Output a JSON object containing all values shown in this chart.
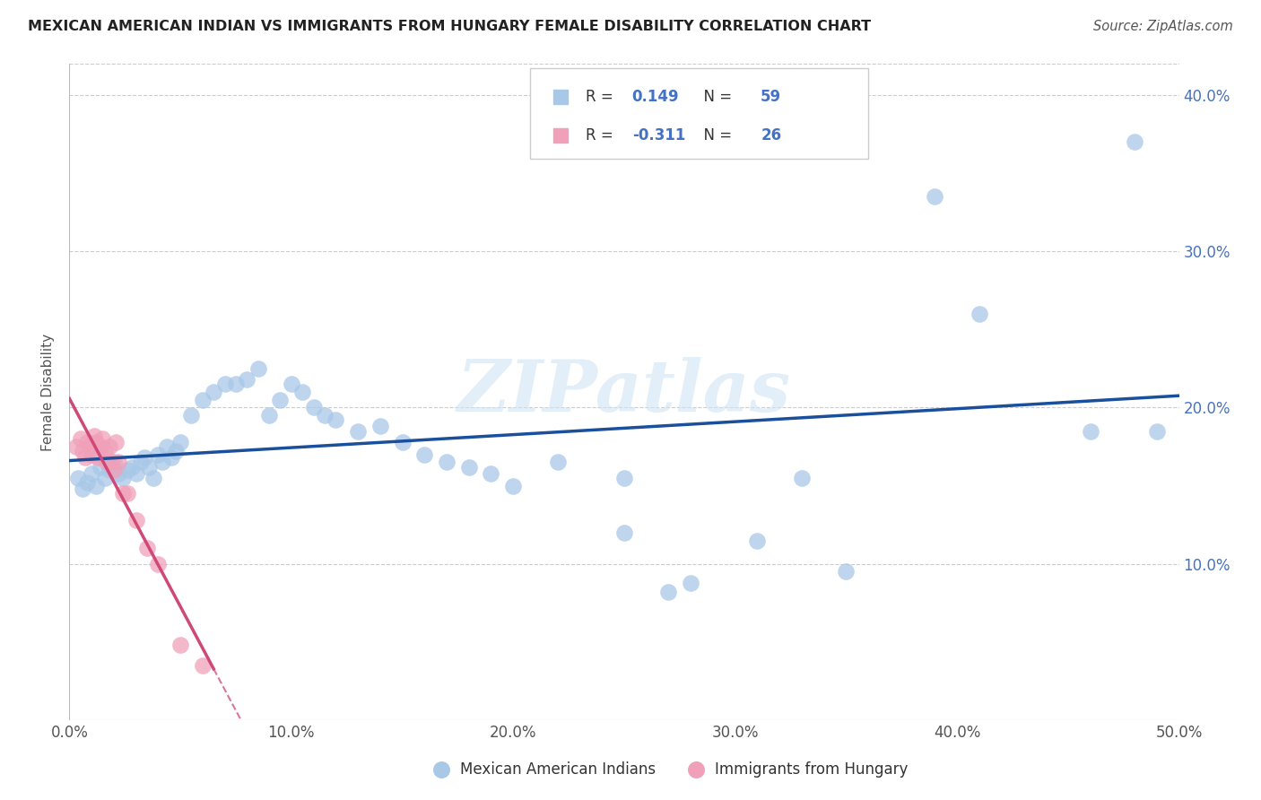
{
  "title": "MEXICAN AMERICAN INDIAN VS IMMIGRANTS FROM HUNGARY FEMALE DISABILITY CORRELATION CHART",
  "source": "Source: ZipAtlas.com",
  "ylabel": "Female Disability",
  "xlim": [
    0.0,
    0.5
  ],
  "ylim": [
    0.0,
    0.42
  ],
  "xtick_vals": [
    0.0,
    0.1,
    0.2,
    0.3,
    0.4,
    0.5
  ],
  "ytick_vals": [
    0.1,
    0.2,
    0.3,
    0.4
  ],
  "xticklabels": [
    "0.0%",
    "10.0%",
    "20.0%",
    "30.0%",
    "40.0%",
    "50.0%"
  ],
  "yticklabels": [
    "10.0%",
    "20.0%",
    "30.0%",
    "40.0%"
  ],
  "legend_labels": [
    "Mexican American Indians",
    "Immigrants from Hungary"
  ],
  "blue_color": "#a8c8e8",
  "pink_color": "#f0a0b8",
  "blue_line_color": "#1a4f9c",
  "pink_line_color": "#d04878",
  "R_blue": 0.149,
  "N_blue": 59,
  "R_pink": -0.311,
  "N_pink": 26,
  "watermark": "ZIPatlas",
  "blue_x": [
    0.004,
    0.006,
    0.008,
    0.01,
    0.012,
    0.014,
    0.016,
    0.018,
    0.02,
    0.022,
    0.024,
    0.026,
    0.028,
    0.03,
    0.032,
    0.034,
    0.036,
    0.038,
    0.04,
    0.042,
    0.044,
    0.046,
    0.048,
    0.05,
    0.055,
    0.06,
    0.065,
    0.07,
    0.075,
    0.08,
    0.085,
    0.09,
    0.095,
    0.1,
    0.105,
    0.11,
    0.115,
    0.12,
    0.13,
    0.14,
    0.15,
    0.16,
    0.17,
    0.18,
    0.19,
    0.2,
    0.22,
    0.25,
    0.28,
    0.31,
    0.33,
    0.35,
    0.39,
    0.41,
    0.46,
    0.48,
    0.49,
    0.25,
    0.27
  ],
  "blue_y": [
    0.155,
    0.148,
    0.152,
    0.158,
    0.15,
    0.162,
    0.155,
    0.16,
    0.165,
    0.158,
    0.155,
    0.16,
    0.162,
    0.158,
    0.165,
    0.168,
    0.162,
    0.155,
    0.17,
    0.165,
    0.175,
    0.168,
    0.172,
    0.178,
    0.195,
    0.205,
    0.21,
    0.215,
    0.215,
    0.218,
    0.225,
    0.195,
    0.205,
    0.215,
    0.21,
    0.2,
    0.195,
    0.192,
    0.185,
    0.188,
    0.178,
    0.17,
    0.165,
    0.162,
    0.158,
    0.15,
    0.165,
    0.155,
    0.088,
    0.115,
    0.155,
    0.095,
    0.335,
    0.26,
    0.185,
    0.37,
    0.185,
    0.12,
    0.082
  ],
  "pink_x": [
    0.003,
    0.005,
    0.006,
    0.007,
    0.008,
    0.009,
    0.01,
    0.011,
    0.012,
    0.013,
    0.014,
    0.015,
    0.016,
    0.017,
    0.018,
    0.019,
    0.02,
    0.021,
    0.022,
    0.024,
    0.026,
    0.03,
    0.035,
    0.04,
    0.05,
    0.06
  ],
  "pink_y": [
    0.175,
    0.18,
    0.172,
    0.168,
    0.178,
    0.175,
    0.17,
    0.182,
    0.178,
    0.168,
    0.175,
    0.18,
    0.172,
    0.165,
    0.175,
    0.165,
    0.16,
    0.178,
    0.165,
    0.145,
    0.145,
    0.128,
    0.11,
    0.1,
    0.048,
    0.035
  ]
}
